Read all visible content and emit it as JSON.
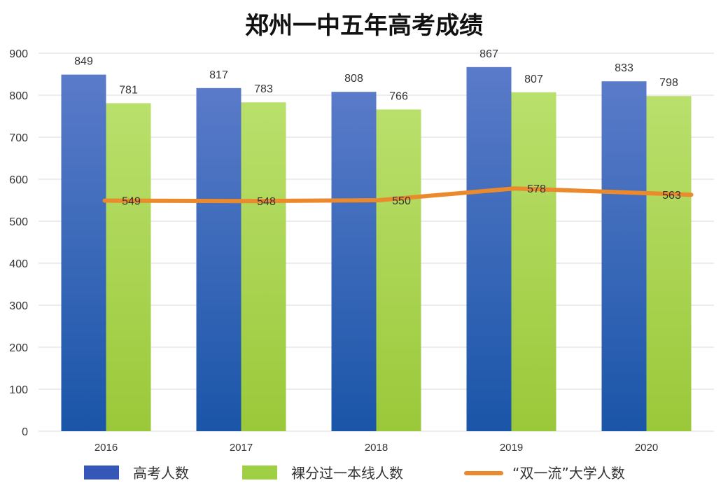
{
  "chart_data": {
    "type": "bar",
    "title": "郑州一中五年高考成绩",
    "categories": [
      "2016",
      "2017",
      "2018",
      "2019",
      "2020"
    ],
    "ylim": [
      0,
      900
    ],
    "yticks": [
      0,
      100,
      200,
      300,
      400,
      500,
      600,
      700,
      800,
      900
    ],
    "grid": true,
    "legend_position": "bottom",
    "series": [
      {
        "name": "高考人数",
        "type": "bar",
        "values": [
          849,
          817,
          808,
          867,
          833
        ],
        "color": "#3558b8"
      },
      {
        "name": "裸分过一本线人数",
        "type": "bar",
        "values": [
          781,
          783,
          766,
          807,
          798
        ],
        "color": "#9fd043"
      },
      {
        "name": "“双一流”大学人数",
        "type": "line",
        "values": [
          549,
          548,
          550,
          578,
          563
        ],
        "color": "#ea8a2c"
      }
    ]
  }
}
